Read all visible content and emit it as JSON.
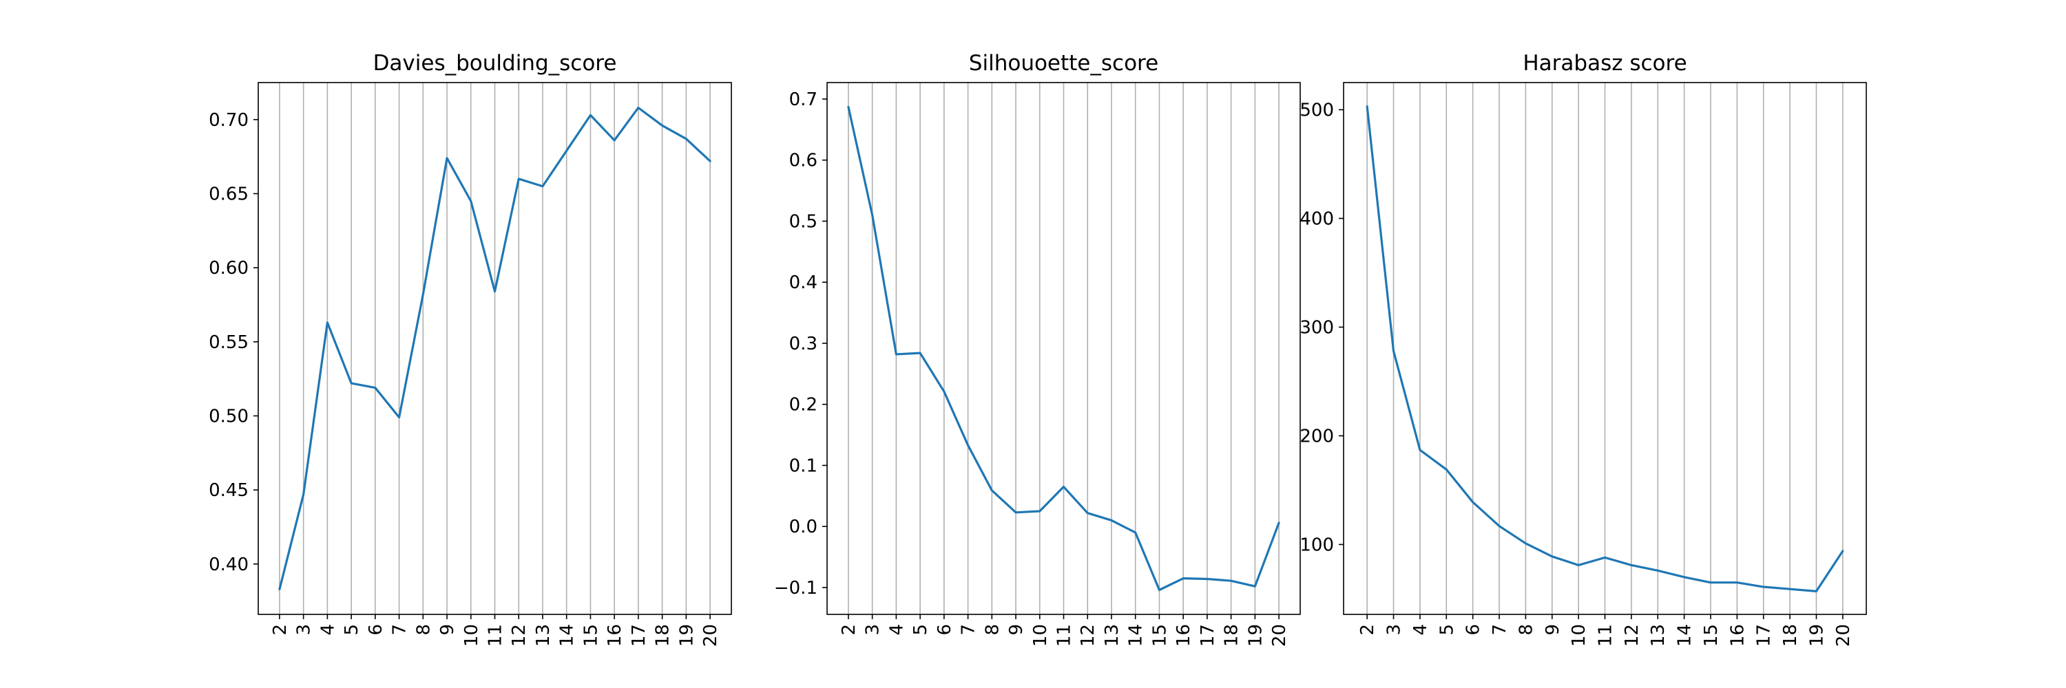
{
  "chart_data": [
    {
      "type": "line",
      "title": "Davies_boulding_score",
      "xlabel": "",
      "ylabel": "",
      "x": [
        2,
        3,
        4,
        5,
        6,
        7,
        8,
        9,
        10,
        11,
        12,
        13,
        14,
        15,
        16,
        17,
        18,
        19,
        20
      ],
      "series": [
        {
          "values": [
            0.383,
            0.447,
            0.563,
            0.522,
            0.519,
            0.499,
            0.582,
            0.674,
            0.645,
            0.584,
            0.66,
            0.655,
            0.679,
            0.703,
            0.686,
            0.708,
            0.696,
            0.687,
            0.672
          ]
        }
      ],
      "ylim": [
        0.366,
        0.725
      ],
      "yticks": [
        0.4,
        0.45,
        0.5,
        0.55,
        0.6,
        0.65,
        0.7
      ],
      "ytick_labels": [
        "0.40",
        "0.45",
        "0.50",
        "0.55",
        "0.60",
        "0.65",
        "0.70"
      ],
      "xgrid": true,
      "ygrid": false,
      "line_color": "#1f77b4"
    },
    {
      "type": "line",
      "title": "Silhouoette_score",
      "xlabel": "",
      "ylabel": "",
      "x": [
        2,
        3,
        4,
        5,
        6,
        7,
        8,
        9,
        10,
        11,
        12,
        13,
        14,
        15,
        16,
        17,
        18,
        19,
        20
      ],
      "series": [
        {
          "values": [
            0.687,
            0.51,
            0.282,
            0.284,
            0.221,
            0.133,
            0.059,
            0.023,
            0.025,
            0.065,
            0.022,
            0.01,
            -0.01,
            -0.104,
            -0.085,
            -0.086,
            -0.089,
            -0.098,
            0.006
          ]
        }
      ],
      "ylim": [
        -0.144,
        0.727
      ],
      "yticks": [
        -0.1,
        0.0,
        0.1,
        0.2,
        0.3,
        0.4,
        0.5,
        0.6,
        0.7
      ],
      "ytick_labels": [
        "−0.1",
        "0.0",
        "0.1",
        "0.2",
        "0.3",
        "0.4",
        "0.5",
        "0.6",
        "0.7"
      ],
      "xgrid": true,
      "ygrid": false,
      "line_color": "#1f77b4"
    },
    {
      "type": "line",
      "title": "Harabasz score",
      "xlabel": "",
      "ylabel": "",
      "x": [
        2,
        3,
        4,
        5,
        6,
        7,
        8,
        9,
        10,
        11,
        12,
        13,
        14,
        15,
        16,
        17,
        18,
        19,
        20
      ],
      "series": [
        {
          "values": [
            503,
            278,
            187,
            169,
            139,
            117,
            101,
            89,
            81,
            88,
            81,
            76,
            70,
            65,
            65,
            61,
            59,
            57,
            94
          ]
        }
      ],
      "ylim": [
        35.7,
        525
      ],
      "yticks": [
        100,
        200,
        300,
        400,
        500
      ],
      "ytick_labels": [
        "100",
        "200",
        "300",
        "400",
        "500"
      ],
      "xgrid": true,
      "ygrid": false,
      "line_color": "#1f77b4"
    }
  ]
}
